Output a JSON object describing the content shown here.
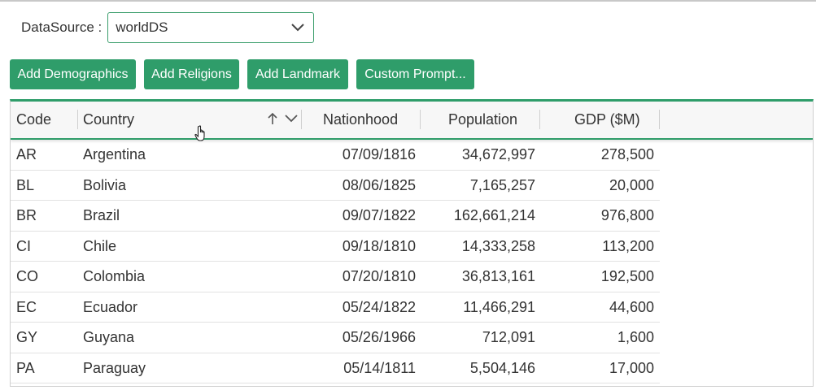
{
  "datasource": {
    "label": "DataSource :",
    "value": "worldDS",
    "icon": "chevron-down-icon"
  },
  "toolbar": {
    "add_demographics": "Add Demographics",
    "add_religions": "Add Religions",
    "add_landmark": "Add Landmark",
    "custom_prompt": "Custom Prompt..."
  },
  "colors": {
    "accent": "#2f9d6a"
  },
  "grid": {
    "columns": [
      "Code",
      "Country",
      "Nationhood",
      "Population",
      "GDP ($M)"
    ],
    "sort": {
      "column": "Country",
      "direction": "ascending"
    },
    "rows": [
      [
        "AR",
        "Argentina",
        "07/09/1816",
        "34,672,997",
        "278,500"
      ],
      [
        "BL",
        "Bolivia",
        "08/06/1825",
        "7,165,257",
        "20,000"
      ],
      [
        "BR",
        "Brazil",
        "09/07/1822",
        "162,661,214",
        "976,800"
      ],
      [
        "CI",
        "Chile",
        "09/18/1810",
        "14,333,258",
        "113,200"
      ],
      [
        "CO",
        "Colombia",
        "07/20/1810",
        "36,813,161",
        "192,500"
      ],
      [
        "EC",
        "Ecuador",
        "05/24/1822",
        "11,466,291",
        "44,600"
      ],
      [
        "GY",
        "Guyana",
        "05/26/1966",
        "712,091",
        "1,600"
      ],
      [
        "PA",
        "Paraguay",
        "05/14/1811",
        "5,504,146",
        "17,000"
      ]
    ]
  }
}
